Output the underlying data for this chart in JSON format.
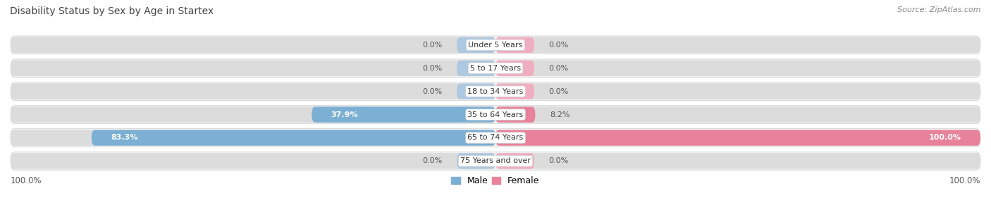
{
  "title": "Disability Status by Sex by Age in Startex",
  "source": "Source: ZipAtlas.com",
  "age_groups": [
    "Under 5 Years",
    "5 to 17 Years",
    "18 to 34 Years",
    "35 to 64 Years",
    "65 to 74 Years",
    "75 Years and over"
  ],
  "male_values": [
    0.0,
    0.0,
    0.0,
    37.9,
    83.3,
    0.0
  ],
  "female_values": [
    0.0,
    0.0,
    0.0,
    8.2,
    100.0,
    0.0
  ],
  "male_color": "#7bafd4",
  "female_color": "#e8829a",
  "male_stub_color": "#adc8e0",
  "female_stub_color": "#f0afc0",
  "row_bg_color": "#e8e8e8",
  "row_outline_color": "#d0d0d0",
  "male_label": "Male",
  "female_label": "Female",
  "x_max": 100,
  "axis_label_left": "100.0%",
  "axis_label_right": "100.0%"
}
